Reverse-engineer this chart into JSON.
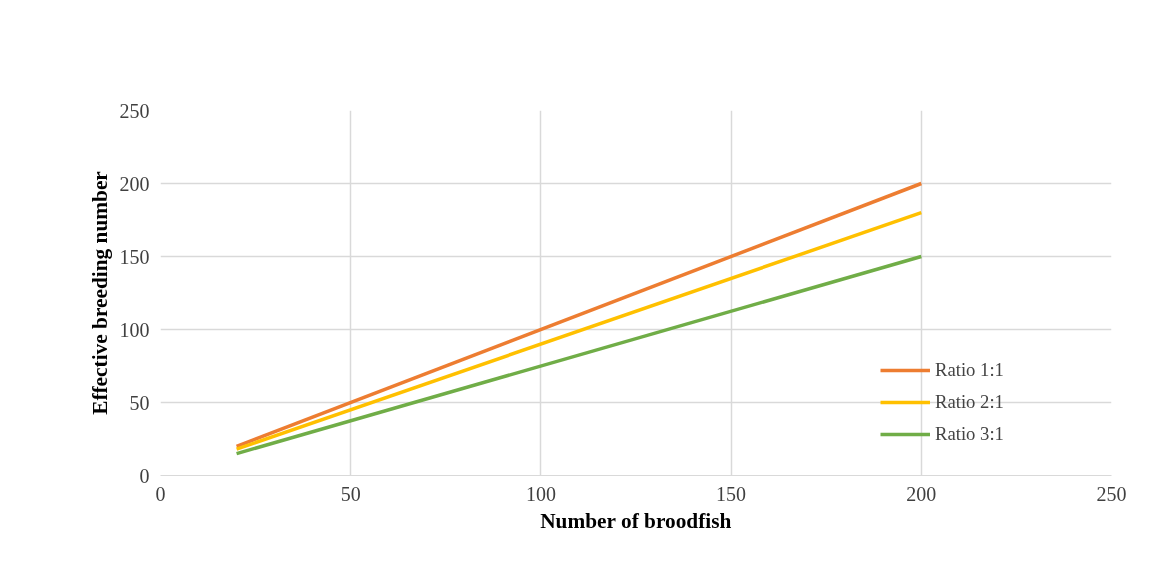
{
  "chart_data": {
    "type": "line",
    "xlabel": "Number of broodfish",
    "ylabel": "Effective breeding number",
    "x": [
      20,
      200
    ],
    "series": [
      {
        "name": "Ratio 1:1",
        "color": "#ed7d31",
        "values": [
          20,
          200
        ]
      },
      {
        "name": "Ratio 2:1",
        "color": "#ffc000",
        "values": [
          18,
          180
        ]
      },
      {
        "name": "Ratio 3:1",
        "color": "#70ad47",
        "values": [
          15,
          150
        ]
      }
    ],
    "xlim": [
      0,
      250
    ],
    "xticks": [
      0,
      50,
      100,
      150,
      200,
      250
    ],
    "ylim": [
      0,
      250
    ],
    "yticks": [
      0,
      50,
      100,
      150,
      200,
      250
    ],
    "grid": true,
    "legend": "right",
    "marker": "none",
    "line_style": "solid"
  }
}
